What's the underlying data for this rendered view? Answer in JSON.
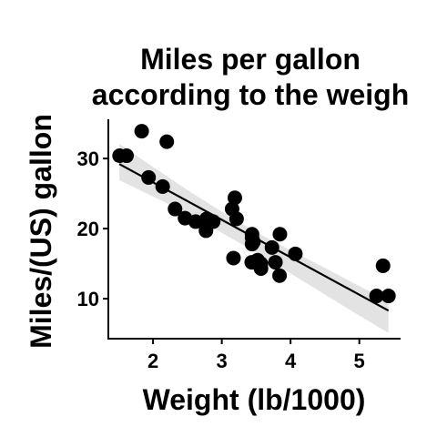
{
  "chart_data": {
    "type": "scatter",
    "title_lines": [
      "Miles per gallon",
      "according to the weigh"
    ],
    "xlabel": "Weight (lb/1000)",
    "ylabel": "Miles/(US) gallon",
    "xlim": [
      1.35,
      5.6
    ],
    "ylim": [
      4.3,
      35.6
    ],
    "xticks": [
      {
        "value": 2,
        "label": "2"
      },
      {
        "value": 3,
        "label": "3"
      },
      {
        "value": 4,
        "label": "4"
      },
      {
        "value": 5,
        "label": "5"
      }
    ],
    "yticks": [
      {
        "value": 10,
        "label": "10"
      },
      {
        "value": 20,
        "label": "20"
      },
      {
        "value": 30,
        "label": "30"
      }
    ],
    "grid": false,
    "point_color": "#000000",
    "line_color": "#000000",
    "band_color": "#d9d9d9",
    "regression": {
      "intercept": 37.285,
      "slope": -5.344
    },
    "confidence_band": [
      {
        "x": 1.51,
        "lower": 26.9,
        "upper": 32.1
      },
      {
        "x": 2.0,
        "lower": 24.6,
        "upper": 28.8
      },
      {
        "x": 2.5,
        "lower": 22.2,
        "upper": 25.5
      },
      {
        "x": 3.0,
        "lower": 19.4,
        "upper": 22.4
      },
      {
        "x": 3.5,
        "lower": 16.6,
        "upper": 19.5
      },
      {
        "x": 4.0,
        "lower": 13.6,
        "upper": 16.9
      },
      {
        "x": 4.5,
        "lower": 10.6,
        "upper": 14.4
      },
      {
        "x": 5.0,
        "lower": 7.6,
        "upper": 11.8
      },
      {
        "x": 5.424,
        "lower": 5.1,
        "upper": 9.7
      }
    ],
    "points": [
      {
        "x": 2.62,
        "y": 21.0
      },
      {
        "x": 2.875,
        "y": 21.0
      },
      {
        "x": 2.32,
        "y": 22.8
      },
      {
        "x": 3.215,
        "y": 21.4
      },
      {
        "x": 3.44,
        "y": 18.7
      },
      {
        "x": 3.46,
        "y": 18.1
      },
      {
        "x": 3.57,
        "y": 14.3
      },
      {
        "x": 3.19,
        "y": 24.4
      },
      {
        "x": 3.15,
        "y": 22.8
      },
      {
        "x": 3.44,
        "y": 19.2
      },
      {
        "x": 3.44,
        "y": 17.8
      },
      {
        "x": 4.07,
        "y": 16.4
      },
      {
        "x": 3.73,
        "y": 17.3
      },
      {
        "x": 3.78,
        "y": 15.2
      },
      {
        "x": 5.25,
        "y": 10.4
      },
      {
        "x": 5.424,
        "y": 10.4
      },
      {
        "x": 5.345,
        "y": 14.7
      },
      {
        "x": 2.2,
        "y": 32.4
      },
      {
        "x": 1.615,
        "y": 30.4
      },
      {
        "x": 1.835,
        "y": 33.9
      },
      {
        "x": 2.465,
        "y": 21.5
      },
      {
        "x": 3.52,
        "y": 15.5
      },
      {
        "x": 3.435,
        "y": 15.2
      },
      {
        "x": 3.84,
        "y": 13.3
      },
      {
        "x": 3.845,
        "y": 19.2
      },
      {
        "x": 1.935,
        "y": 27.3
      },
      {
        "x": 2.14,
        "y": 26.0
      },
      {
        "x": 1.513,
        "y": 30.4
      },
      {
        "x": 3.17,
        "y": 15.8
      },
      {
        "x": 2.77,
        "y": 19.7
      },
      {
        "x": 3.57,
        "y": 15.0
      },
      {
        "x": 2.78,
        "y": 21.4
      }
    ]
  }
}
